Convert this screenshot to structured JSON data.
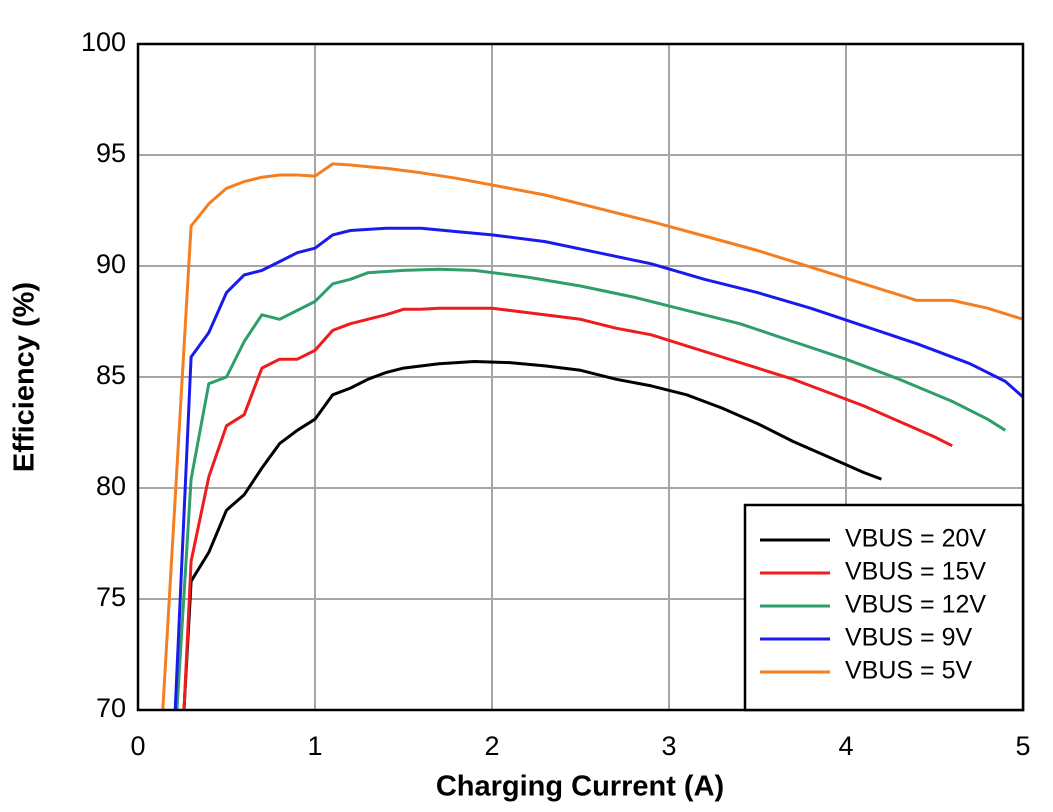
{
  "chart_data": {
    "type": "line",
    "xlabel": "Charging Current (A)",
    "ylabel": "Efficiency (%)",
    "xlim": [
      0,
      5
    ],
    "xticks": [
      0,
      1,
      2,
      3,
      4,
      5
    ],
    "ylim": [
      70,
      100
    ],
    "yticks": [
      70,
      75,
      80,
      85,
      90,
      95,
      100
    ],
    "grid": true,
    "legend": "lower right",
    "series": [
      {
        "name": "VBUS = 20V",
        "color": "#000000",
        "x": [
          0.26,
          0.3,
          0.4,
          0.5,
          0.6,
          0.7,
          0.8,
          0.9,
          1.0,
          1.1,
          1.2,
          1.3,
          1.4,
          1.5,
          1.7,
          1.9,
          2.1,
          2.3,
          2.5,
          2.7,
          2.9,
          3.1,
          3.3,
          3.5,
          3.7,
          3.9,
          4.1,
          4.2
        ],
        "values": [
          70,
          75.8,
          77.1,
          79,
          79.7,
          80.9,
          82,
          82.6,
          83.1,
          84.2,
          84.5,
          84.9,
          85.2,
          85.4,
          85.6,
          85.7,
          85.65,
          85.5,
          85.3,
          84.9,
          84.6,
          84.2,
          83.6,
          82.9,
          82.1,
          81.4,
          80.7,
          80.4
        ]
      },
      {
        "name": "VBUS = 15V",
        "color": "#ee1c1c",
        "x": [
          0.26,
          0.3,
          0.4,
          0.5,
          0.6,
          0.7,
          0.8,
          0.9,
          1.0,
          1.1,
          1.2,
          1.4,
          1.5,
          1.6,
          1.7,
          2.0,
          2.2,
          2.5,
          2.7,
          2.9,
          3.1,
          3.3,
          3.5,
          3.7,
          3.9,
          4.1,
          4.3,
          4.5,
          4.6
        ],
        "values": [
          70,
          76.7,
          80.5,
          82.8,
          83.3,
          85.4,
          85.8,
          85.8,
          86.2,
          87.1,
          87.4,
          87.8,
          88.05,
          88.05,
          88.1,
          88.1,
          87.9,
          87.6,
          87.2,
          86.9,
          86.4,
          85.9,
          85.4,
          84.9,
          84.3,
          83.7,
          83.0,
          82.3,
          81.9
        ]
      },
      {
        "name": "VBUS = 12V",
        "color": "#2e9e6a",
        "x": [
          0.22,
          0.3,
          0.4,
          0.5,
          0.6,
          0.7,
          0.8,
          0.9,
          1.0,
          1.1,
          1.2,
          1.3,
          1.5,
          1.7,
          1.9,
          2.2,
          2.5,
          2.8,
          3.1,
          3.4,
          3.7,
          4.0,
          4.3,
          4.6,
          4.8,
          4.9
        ],
        "values": [
          70,
          80.4,
          84.7,
          85,
          86.6,
          87.8,
          87.6,
          88,
          88.4,
          89.2,
          89.4,
          89.7,
          89.8,
          89.85,
          89.8,
          89.5,
          89.1,
          88.6,
          88.0,
          87.4,
          86.6,
          85.8,
          84.9,
          83.9,
          83.1,
          82.6
        ]
      },
      {
        "name": "VBUS = 9V",
        "color": "#1a1aee",
        "x": [
          0.21,
          0.3,
          0.4,
          0.5,
          0.6,
          0.7,
          0.8,
          0.9,
          1.0,
          1.1,
          1.2,
          1.3,
          1.4,
          1.6,
          1.8,
          2.0,
          2.3,
          2.6,
          2.9,
          3.2,
          3.5,
          3.8,
          4.1,
          4.4,
          4.7,
          4.9,
          5.0
        ],
        "values": [
          70,
          85.9,
          87,
          88.8,
          89.6,
          89.8,
          90.2,
          90.6,
          90.8,
          91.4,
          91.6,
          91.65,
          91.7,
          91.7,
          91.55,
          91.4,
          91.1,
          90.6,
          90.1,
          89.4,
          88.8,
          88.1,
          87.3,
          86.5,
          85.6,
          84.8,
          84.1
        ]
      },
      {
        "name": "VBUS = 5V",
        "color": "#f57f20",
        "x": [
          0.14,
          0.3,
          0.4,
          0.5,
          0.6,
          0.7,
          0.8,
          0.9,
          1.0,
          1.1,
          1.2,
          1.4,
          1.6,
          1.8,
          2.0,
          2.3,
          2.6,
          2.9,
          3.2,
          3.5,
          3.8,
          4.1,
          4.4,
          4.6,
          4.8,
          5.0
        ],
        "values": [
          70,
          91.8,
          92.8,
          93.5,
          93.8,
          94.0,
          94.1,
          94.1,
          94.05,
          94.6,
          94.55,
          94.4,
          94.2,
          93.95,
          93.65,
          93.2,
          92.6,
          92.0,
          91.35,
          90.7,
          89.95,
          89.2,
          88.45,
          88.45,
          88.1,
          87.6
        ]
      }
    ]
  }
}
